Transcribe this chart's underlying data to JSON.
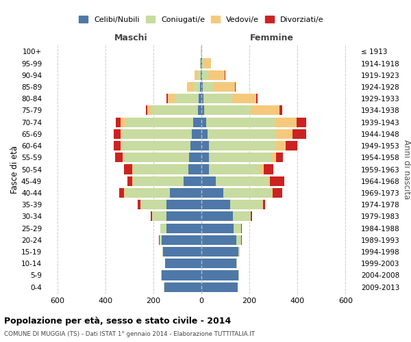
{
  "age_groups": [
    "0-4",
    "5-9",
    "10-14",
    "15-19",
    "20-24",
    "25-29",
    "30-34",
    "35-39",
    "40-44",
    "45-49",
    "50-54",
    "55-59",
    "60-64",
    "65-69",
    "70-74",
    "75-79",
    "80-84",
    "85-89",
    "90-94",
    "95-99",
    "100+"
  ],
  "birth_years": [
    "2009-2013",
    "2004-2008",
    "1999-2003",
    "1994-1998",
    "1989-1993",
    "1984-1988",
    "1979-1983",
    "1974-1978",
    "1969-1973",
    "1964-1968",
    "1959-1963",
    "1954-1958",
    "1949-1953",
    "1944-1948",
    "1939-1943",
    "1934-1938",
    "1929-1933",
    "1924-1928",
    "1919-1923",
    "1914-1918",
    "≤ 1913"
  ],
  "males": {
    "celibi": [
      155,
      165,
      150,
      160,
      165,
      145,
      145,
      145,
      130,
      75,
      55,
      50,
      45,
      40,
      35,
      15,
      10,
      5,
      3,
      2,
      1
    ],
    "coniugati": [
      1,
      2,
      2,
      3,
      10,
      25,
      60,
      110,
      190,
      210,
      230,
      275,
      285,
      290,
      280,
      190,
      100,
      30,
      10,
      3,
      1
    ],
    "vedovi": [
      0,
      0,
      0,
      0,
      0,
      0,
      0,
      0,
      1,
      2,
      2,
      3,
      5,
      5,
      20,
      20,
      30,
      25,
      15,
      2,
      0
    ],
    "divorziati": [
      0,
      0,
      0,
      0,
      1,
      2,
      5,
      10,
      20,
      20,
      35,
      30,
      30,
      30,
      20,
      5,
      5,
      0,
      0,
      0,
      0
    ]
  },
  "females": {
    "nubili": [
      150,
      155,
      145,
      155,
      145,
      135,
      130,
      120,
      90,
      60,
      30,
      30,
      30,
      25,
      20,
      10,
      8,
      5,
      3,
      2,
      1
    ],
    "coniugate": [
      1,
      2,
      2,
      5,
      20,
      30,
      75,
      135,
      205,
      220,
      215,
      260,
      280,
      285,
      285,
      195,
      120,
      45,
      25,
      8,
      1
    ],
    "vedove": [
      0,
      0,
      0,
      0,
      0,
      0,
      0,
      1,
      2,
      5,
      15,
      20,
      40,
      70,
      90,
      120,
      100,
      90,
      70,
      30,
      1
    ],
    "divorziate": [
      0,
      0,
      0,
      0,
      2,
      3,
      5,
      10,
      40,
      60,
      40,
      30,
      50,
      55,
      40,
      10,
      5,
      2,
      2,
      0,
      0
    ]
  },
  "colors": {
    "celibi": "#4e78a8",
    "coniugati": "#c8dba0",
    "vedovi": "#f5c97c",
    "divorziati": "#cc2222"
  },
  "xlim": 650,
  "title": "Popolazione per età, sesso e stato civile - 2014",
  "subtitle": "COMUNE DI MUGGIA (TS) - Dati ISTAT 1° gennaio 2014 - Elaborazione TUTTITALIA.IT",
  "legend_labels": [
    "Celibi/Nubili",
    "Coniugati/e",
    "Vedovi/e",
    "Divorziati/e"
  ],
  "xlabel_left": "Maschi",
  "xlabel_right": "Femmine",
  "ylabel": "Fasce di età",
  "ylabel_right": "Anni di nascita"
}
